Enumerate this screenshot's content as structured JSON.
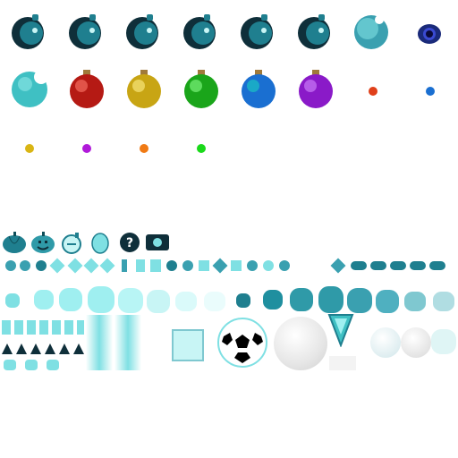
{
  "sheet": {
    "title": "",
    "background": "#ffffff"
  },
  "palette": {
    "teal_dark": "#0f2f3a",
    "teal_mid": "#1f7f8f",
    "teal_light": "#7fe0e3",
    "teal_pale": "#c8f5f5",
    "red": "#c81a14",
    "gold": "#c8a514",
    "green": "#1aa51a",
    "blue": "#1a6fd1",
    "purple": "#8a1ac8",
    "white_ball": "#f3f3f3"
  },
  "sprites": {
    "bombs": [
      {
        "icon": "bomb-icon",
        "fuse": "lit"
      },
      {
        "icon": "bomb-icon",
        "fuse": "lit"
      },
      {
        "icon": "bomb-icon",
        "fuse": "lit"
      },
      {
        "icon": "bomb-icon",
        "fuse": "lit"
      },
      {
        "icon": "bomb-icon",
        "fuse": "lit"
      },
      {
        "icon": "bomb-icon",
        "fuse": "lit"
      }
    ],
    "ornaments": [
      {
        "icon": "ornament-icon",
        "color": "#b51a14"
      },
      {
        "icon": "ornament-icon",
        "color": "#c8a514"
      },
      {
        "icon": "ornament-icon",
        "color": "#1aa51a"
      },
      {
        "icon": "ornament-icon",
        "color": "#1a6fd1"
      },
      {
        "icon": "ornament-icon",
        "color": "#8a1ac8"
      }
    ],
    "dots": [
      {
        "icon": "dot-icon",
        "color": "#e0401a"
      },
      {
        "icon": "dot-icon",
        "color": "#1a6fd1"
      },
      {
        "icon": "dot-icon",
        "color": "#d9b514"
      },
      {
        "icon": "dot-icon",
        "color": "#b01ad9"
      },
      {
        "icon": "dot-icon",
        "color": "#f07a14"
      },
      {
        "icon": "dot-icon",
        "color": "#1ad91a"
      }
    ],
    "items_row": [
      {
        "icon": "pumpkin-icon"
      },
      {
        "icon": "jack-o-lantern-icon"
      },
      {
        "icon": "bomb-glass-icon"
      },
      {
        "icon": "egg-icon"
      },
      {
        "icon": "mystery-question-icon"
      },
      {
        "icon": "radio-device-icon"
      }
    ],
    "mystery_symbol": "?",
    "soccer_ball": {
      "icon": "soccer-ball-icon"
    },
    "snowball": {
      "icon": "snowball-icon"
    },
    "shield": {
      "icon": "shield-icon"
    }
  }
}
